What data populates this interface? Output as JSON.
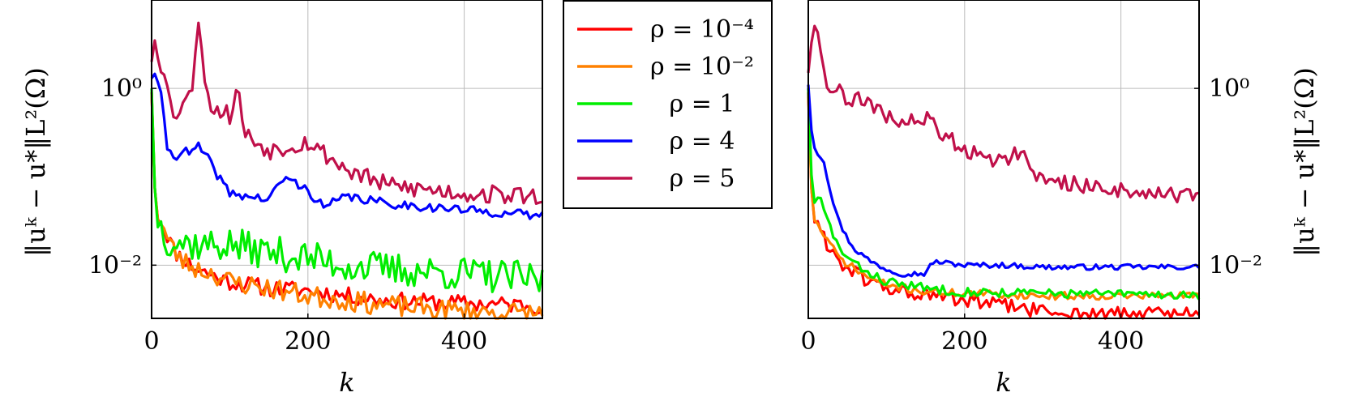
{
  "chart_data": [
    {
      "type": "line",
      "xlabel": "k",
      "ylabel": "‖uᵏ − u*‖L²(Ω)",
      "yscale": "log",
      "xlim": [
        0,
        500
      ],
      "ylim": [
        0.0025,
        10.0
      ],
      "xticks": [
        {
          "value": 0,
          "label": "0"
        },
        {
          "value": 200,
          "label": "200"
        },
        {
          "value": 400,
          "label": "400"
        }
      ],
      "yticks": [
        {
          "value": 1,
          "label": "10⁰"
        },
        {
          "value": 0.01,
          "label": "10⁻²"
        }
      ],
      "ytick_side": "left",
      "grid": true,
      "series": [
        {
          "name": "ρ = 10⁻⁴",
          "color": "#ff0000",
          "x": [
            0,
            5,
            10,
            20,
            30,
            40,
            50,
            60,
            80,
            100,
            150,
            200,
            250,
            300,
            400,
            500
          ],
          "y": [
            0.9,
            0.04,
            0.035,
            0.022,
            0.014,
            0.012,
            0.01,
            0.009,
            0.0075,
            0.0065,
            0.0055,
            0.0052,
            0.0045,
            0.004,
            0.0037,
            0.0035
          ],
          "jitter": 0.22,
          "seed": 11
        },
        {
          "name": "ρ = 10⁻²",
          "color": "#ff8000",
          "x": [
            0,
            5,
            10,
            20,
            30,
            40,
            60,
            80,
            100,
            150,
            200,
            250,
            300,
            400,
            500
          ],
          "y": [
            0.9,
            0.04,
            0.035,
            0.02,
            0.014,
            0.011,
            0.009,
            0.008,
            0.0065,
            0.0055,
            0.0045,
            0.004,
            0.0035,
            0.003,
            0.0028
          ],
          "jitter": 0.28,
          "seed": 23
        },
        {
          "name": "ρ = 1",
          "color": "#00ee00",
          "x": [
            0,
            5,
            10,
            20,
            40,
            60,
            100,
            150,
            200,
            250,
            300,
            400,
            500
          ],
          "y": [
            1.0,
            0.04,
            0.03,
            0.02,
            0.018,
            0.017,
            0.017,
            0.014,
            0.012,
            0.01,
            0.009,
            0.008,
            0.0068
          ],
          "jitter": 0.45,
          "seed": 37
        },
        {
          "name": "ρ = 4",
          "color": "#0000ff",
          "x": [
            0,
            5,
            10,
            15,
            20,
            25,
            30,
            40,
            50,
            60,
            70,
            80,
            100,
            150,
            170,
            200,
            220,
            250,
            300,
            400,
            500
          ],
          "y": [
            1.3,
            1.5,
            1.1,
            0.5,
            0.22,
            0.18,
            0.17,
            0.2,
            0.18,
            0.22,
            0.17,
            0.12,
            0.065,
            0.055,
            0.1,
            0.07,
            0.045,
            0.06,
            0.05,
            0.042,
            0.036
          ],
          "jitter": 0.12,
          "seed": 41
        },
        {
          "name": "ρ = 5",
          "color": "#c0104a",
          "x": [
            0,
            5,
            10,
            15,
            20,
            25,
            30,
            40,
            50,
            55,
            60,
            65,
            70,
            80,
            100,
            110,
            120,
            150,
            200,
            250,
            300,
            400,
            500
          ],
          "y": [
            2.0,
            4.0,
            1.8,
            2.0,
            1.0,
            0.6,
            0.5,
            0.7,
            0.8,
            2.2,
            6.0,
            3.0,
            0.8,
            0.6,
            0.5,
            1.0,
            0.3,
            0.2,
            0.25,
            0.12,
            0.08,
            0.065,
            0.06
          ],
          "jitter": 0.25,
          "seed": 53
        }
      ]
    },
    {
      "type": "line",
      "xlabel": "k",
      "ylabel": "‖uᵏ − u*‖L²(Ω)",
      "yscale": "log",
      "xlim": [
        0,
        500
      ],
      "ylim": [
        0.0025,
        10.0
      ],
      "xticks": [
        {
          "value": 0,
          "label": "0"
        },
        {
          "value": 200,
          "label": "200"
        },
        {
          "value": 400,
          "label": "400"
        }
      ],
      "yticks": [
        {
          "value": 1,
          "label": "10⁰"
        },
        {
          "value": 0.01,
          "label": "10⁻²"
        }
      ],
      "ytick_side": "right",
      "grid": true,
      "series": [
        {
          "name": "ρ = 10⁻⁴",
          "color": "#ff0000",
          "x": [
            0,
            5,
            10,
            20,
            30,
            40,
            60,
            80,
            100,
            150,
            200,
            250,
            300,
            350,
            400,
            500
          ],
          "y": [
            0.9,
            0.04,
            0.03,
            0.02,
            0.015,
            0.011,
            0.008,
            0.0065,
            0.0055,
            0.0045,
            0.004,
            0.0035,
            0.003,
            0.0028,
            0.0028,
            0.0028
          ],
          "jitter": 0.2,
          "seed": 61
        },
        {
          "name": "ρ = 10⁻²",
          "color": "#ff8000",
          "x": [
            0,
            5,
            10,
            20,
            30,
            40,
            60,
            80,
            100,
            150,
            200,
            300,
            400,
            500
          ],
          "y": [
            0.8,
            0.04,
            0.03,
            0.022,
            0.016,
            0.012,
            0.009,
            0.007,
            0.006,
            0.005,
            0.0048,
            0.0045,
            0.0045,
            0.0045
          ],
          "jitter": 0.1,
          "seed": 71
        },
        {
          "name": "ρ = 1",
          "color": "#00ee00",
          "x": [
            0,
            5,
            10,
            15,
            20,
            30,
            40,
            60,
            80,
            100,
            150,
            200,
            300,
            400,
            500
          ],
          "y": [
            1.0,
            0.06,
            0.05,
            0.06,
            0.04,
            0.025,
            0.015,
            0.01,
            0.008,
            0.0065,
            0.0055,
            0.005,
            0.0048,
            0.0047,
            0.0046
          ],
          "jitter": 0.12,
          "seed": 83
        },
        {
          "name": "ρ = 4",
          "color": "#0000ff",
          "x": [
            0,
            5,
            10,
            20,
            30,
            40,
            50,
            60,
            80,
            100,
            120,
            150,
            160,
            200,
            250,
            300,
            400,
            500
          ],
          "y": [
            1.1,
            0.25,
            0.2,
            0.15,
            0.06,
            0.03,
            0.02,
            0.015,
            0.011,
            0.009,
            0.008,
            0.008,
            0.011,
            0.01,
            0.01,
            0.0095,
            0.0095,
            0.0095
          ],
          "jitter": 0.07,
          "seed": 97
        },
        {
          "name": "ρ = 5",
          "color": "#c0104a",
          "x": [
            0,
            5,
            10,
            15,
            20,
            25,
            30,
            40,
            50,
            60,
            80,
            100,
            120,
            150,
            200,
            250,
            270,
            300,
            350,
            400,
            500
          ],
          "y": [
            1.5,
            4.0,
            7.0,
            3.0,
            1.5,
            1.2,
            1.0,
            0.9,
            0.7,
            0.8,
            0.6,
            0.5,
            0.4,
            0.45,
            0.2,
            0.15,
            0.2,
            0.09,
            0.08,
            0.07,
            0.06
          ],
          "jitter": 0.22,
          "seed": 109
        }
      ]
    }
  ],
  "legend": {
    "placement": "between panels",
    "entries": [
      {
        "label": "ρ = 10⁻⁴",
        "color": "#ff0000"
      },
      {
        "label": "ρ = 10⁻²",
        "color": "#ff8000"
      },
      {
        "label": "ρ = 1",
        "color": "#00ee00"
      },
      {
        "label": "ρ = 4",
        "color": "#0000ff"
      },
      {
        "label": "ρ = 5",
        "color": "#c0104a"
      }
    ]
  }
}
